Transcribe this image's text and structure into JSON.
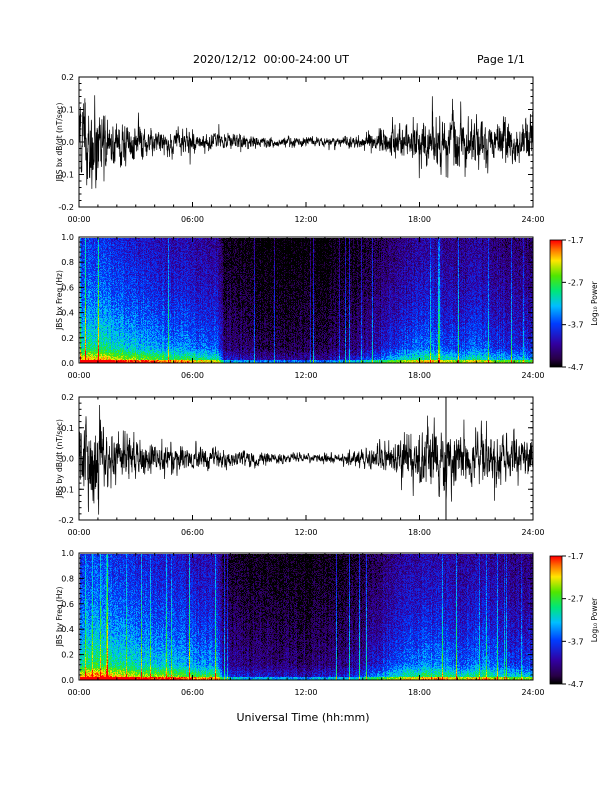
{
  "header": {
    "title": "2020/12/12  00:00-24:00 UT",
    "page": "Page 1/1"
  },
  "xaxis_label": "Universal Time (hh:mm)",
  "colorbar": {
    "label": "Log₁₀ Power",
    "ticks": [
      "-1.7",
      "-2.7",
      "-3.7",
      "-4.7"
    ]
  },
  "chart_data": [
    {
      "type": "line",
      "ylabel": "JBS bx dB/dt (nT/sec)",
      "xlim": [
        0,
        24
      ],
      "ylim": [
        -0.2,
        0.2
      ],
      "xticks": [
        "00:00",
        "06:00",
        "12:00",
        "18:00",
        "24:00"
      ],
      "yticks": [
        "0.2",
        "0.1",
        "0.0",
        "-0.1",
        "-0.2"
      ],
      "envelope": {
        "x": [
          0,
          0.5,
          1,
          1.5,
          2,
          3,
          4,
          5,
          6,
          7,
          8,
          9,
          10,
          11,
          12,
          13,
          14,
          15,
          16,
          17,
          18,
          19,
          20,
          21,
          22,
          23,
          24
        ],
        "amplitude": [
          0.05,
          0.09,
          0.07,
          0.05,
          0.04,
          0.03,
          0.02,
          0.02,
          0.018,
          0.016,
          0.014,
          0.012,
          0.01,
          0.009,
          0.008,
          0.008,
          0.009,
          0.012,
          0.02,
          0.03,
          0.04,
          0.045,
          0.045,
          0.04,
          0.038,
          0.04,
          0.04
        ]
      }
    },
    {
      "type": "heatmap",
      "ylabel": "JBS bx Freq (Hz)",
      "xlim": [
        0,
        24
      ],
      "ylim": [
        0.0,
        1.0
      ],
      "zlim": [
        -4.7,
        -1.7
      ],
      "xticks": [
        "00:00",
        "06:00",
        "12:00",
        "18:00",
        "24:00"
      ],
      "yticks": [
        "1.0",
        "0.8",
        "0.6",
        "0.4",
        "0.2",
        "0.0"
      ]
    },
    {
      "type": "line",
      "ylabel": "JBS by dB/dt (nT/sec)",
      "xlim": [
        0,
        24
      ],
      "ylim": [
        -0.2,
        0.2
      ],
      "xticks": [
        "00:00",
        "06:00",
        "12:00",
        "18:00",
        "24:00"
      ],
      "yticks": [
        "0.2",
        "0.1",
        "0.0",
        "-0.1",
        "-0.2"
      ],
      "envelope": {
        "x": [
          0,
          0.5,
          1,
          1.5,
          2,
          3,
          4,
          5,
          6,
          7,
          8,
          9,
          10,
          11,
          12,
          13,
          14,
          15,
          16,
          17,
          18,
          19,
          20,
          21,
          22,
          23,
          24
        ],
        "amplitude": [
          0.06,
          0.09,
          0.07,
          0.05,
          0.045,
          0.035,
          0.03,
          0.025,
          0.02,
          0.018,
          0.015,
          0.012,
          0.01,
          0.008,
          0.007,
          0.008,
          0.01,
          0.014,
          0.025,
          0.04,
          0.05,
          0.055,
          0.05,
          0.045,
          0.045,
          0.045,
          0.04
        ]
      },
      "spike": {
        "x": 19.4,
        "y": [
          -0.2,
          0.2
        ]
      }
    },
    {
      "type": "heatmap",
      "ylabel": "JBS by Freq (Hz)",
      "xlim": [
        0,
        24
      ],
      "ylim": [
        0.0,
        1.0
      ],
      "zlim": [
        -4.7,
        -1.7
      ],
      "xticks": [
        "00:00",
        "06:00",
        "12:00",
        "18:00",
        "24:00"
      ],
      "yticks": [
        "1.0",
        "0.8",
        "0.6",
        "0.4",
        "0.2",
        "0.0"
      ]
    }
  ]
}
